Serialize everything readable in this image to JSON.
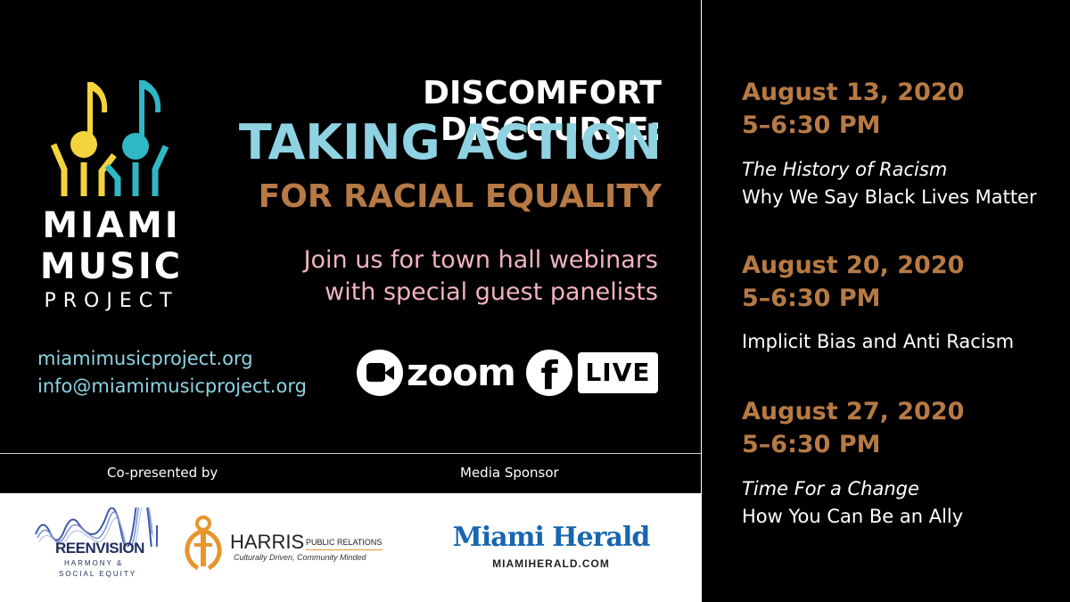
{
  "logo": {
    "line1": "MIAMI",
    "line2": "MUSIC",
    "line3": "PROJECT",
    "colors": {
      "yellow": "#f3d43c",
      "teal": "#2fb7c6"
    }
  },
  "title": {
    "line1": "DISCOMFORT DISCOURSE:",
    "line2": "TAKING ACTION",
    "line3": "FOR RACIAL EQUALITY"
  },
  "tagline": {
    "line1": "Join us for town hall webinars",
    "line2": "with special guest panelists"
  },
  "contact": {
    "website": "miamimusicproject.org",
    "email": "info@miamimusicproject.org"
  },
  "platforms": {
    "zoom": "zoom",
    "facebook_live": "LIVE"
  },
  "footer": {
    "copresented_label": "Co-presented by",
    "media_label": "Media Sponsor"
  },
  "sponsors": {
    "reenvision": {
      "name": "REENVISION",
      "sub1": "HARMONY &",
      "sub2": "SOCIAL EQUITY"
    },
    "harris": {
      "name": "HARRIS",
      "type": "PUBLIC RELATIONS",
      "slogan": "Culturally Driven, Community Minded"
    },
    "herald": {
      "name": "Miami Herald",
      "url": "MIAMIHERALD.COM"
    }
  },
  "sessions": [
    {
      "date": "August 13, 2020",
      "time": "5–6:30 PM",
      "title_italic": "The History of Racism",
      "subtitle": "Why We Say Black Lives Matter"
    },
    {
      "date": "August 20, 2020",
      "time": "5–6:30 PM",
      "title_italic": "",
      "subtitle": "Implicit Bias and Anti Racism"
    },
    {
      "date": "August 27, 2020",
      "time": "5–6:30 PM",
      "title_italic": "Time For a Change",
      "subtitle": "How You Can Be an Ally"
    }
  ],
  "colors": {
    "background": "#000000",
    "accent_teal": "#8fd3e3",
    "accent_bronze": "#b77a45",
    "accent_pink": "#f2b3bf"
  }
}
